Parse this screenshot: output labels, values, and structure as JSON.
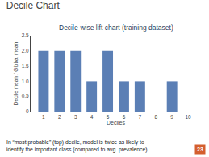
{
  "chart_data": {
    "type": "bar",
    "title": "Decile Chart",
    "subtitle": "Decile-wise lift chart (training dataset)",
    "xlabel": "Deciles",
    "ylabel": "Decile mean / Global mean",
    "x": [
      1,
      2,
      3,
      4,
      5,
      6,
      7,
      8,
      9,
      10
    ],
    "values": [
      2.0,
      2.0,
      2.0,
      1.0,
      2.0,
      1.0,
      1.0,
      0.0,
      1.0,
      0.0
    ],
    "color": "#5b7fb5",
    "xlim": [
      0.2,
      10.8
    ],
    "xticks": [
      1,
      2,
      3,
      4,
      5,
      6,
      7,
      8,
      9,
      10
    ],
    "ylim": [
      0,
      2.5
    ],
    "yticks": [
      0,
      0.5,
      {
        "value": 1.0,
        "label": "1.0"
      },
      1.5,
      {
        "value": 2.0,
        "label": "2.0"
      },
      2.5
    ],
    "grid": false,
    "annotations": [
      "In “most probable” (top) decile, model is twice as likely to\nidentify the important class (compared to avg. prevalence)",
      "23"
    ]
  }
}
